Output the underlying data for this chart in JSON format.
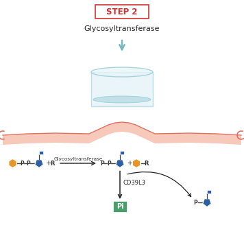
{
  "title": "STEP 2",
  "title_color": "#cc3333",
  "bg_color": "#ffffff",
  "glyco_label_top": "Glycosyltransferase",
  "glyco_label_reaction": "Glycosyltransferase",
  "cd39l3_label": "CD39L3",
  "pi_label": "Pi",
  "pi_box_color": "#4a9e6b",
  "arrow_teal_color": "#7ab8c0",
  "orange_color": "#e8962a",
  "blue_color": "#2e5fa3",
  "pink_fill": "#f5c0b0",
  "pink_edge": "#e07060",
  "cup_body_fill": "#d8eef3",
  "cup_body_edge": "#8ec8d4",
  "cup_water_fill": "#b0d8e0",
  "cup_top_fill": "#e8f5f8",
  "flag_color": "#2e5fa3",
  "p_color": "#333333",
  "r_color": "#333333",
  "line_color": "#444444"
}
